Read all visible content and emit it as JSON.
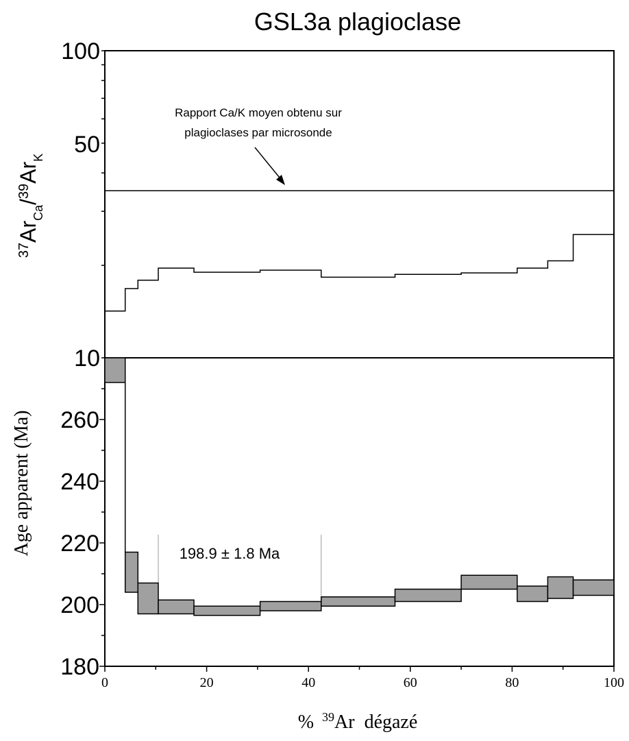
{
  "chart_data": [
    {
      "type": "line",
      "title": "GSL3a plagioclase",
      "ylabel": "37ArCa/39ArK",
      "ylabel_parts": {
        "pre1": "37",
        "main1": "Ar",
        "sub1": "Ca",
        "slash": "/",
        "pre2": "39",
        "main2": "Ar",
        "sub2": "K"
      },
      "yscale": "log",
      "ylim": [
        10,
        100
      ],
      "y_tick_labels": [
        "100",
        "50",
        "10"
      ],
      "x_range": [
        0,
        100
      ],
      "reference_line": {
        "value": 35
      },
      "annotation": {
        "line1": "Rapport Ca/K moyen obtenu sur",
        "line2": "plagioclases par microsonde"
      },
      "steps": [
        {
          "x0": 0,
          "x1": 4,
          "y": 14.2
        },
        {
          "x0": 4,
          "x1": 6.5,
          "y": 16.8
        },
        {
          "x0": 6.5,
          "x1": 10.5,
          "y": 17.9
        },
        {
          "x0": 10.5,
          "x1": 17.5,
          "y": 19.6
        },
        {
          "x0": 17.5,
          "x1": 30.5,
          "y": 19.0
        },
        {
          "x0": 30.5,
          "x1": 42.5,
          "y": 19.3
        },
        {
          "x0": 42.5,
          "x1": 57,
          "y": 18.3
        },
        {
          "x0": 57,
          "x1": 70,
          "y": 18.7
        },
        {
          "x0": 70,
          "x1": 81,
          "y": 18.9
        },
        {
          "x0": 81,
          "x1": 87,
          "y": 19.6
        },
        {
          "x0": 87,
          "x1": 92,
          "y": 20.7
        },
        {
          "x0": 92,
          "x1": 100,
          "y": 25.2
        }
      ]
    },
    {
      "type": "bar",
      "xlabel": "% 39Ar dégazé",
      "xlabel_parts": {
        "pct": "%",
        "sup": "39",
        "ar": "Ar",
        "rest": "dégazé"
      },
      "ylabel": "Age apparent (Ma)",
      "ylim": [
        180,
        280
      ],
      "xlim": [
        0,
        100
      ],
      "y_ticks": [
        180,
        200,
        220,
        240,
        260
      ],
      "x_ticks": [
        0,
        20,
        40,
        60,
        80,
        100
      ],
      "plateau": {
        "label": "198.9 ± 1.8 Ma",
        "x0": 10.5,
        "x1": 42.5
      },
      "steps": [
        {
          "x0": 0,
          "x1": 4,
          "low": 272,
          "high": 284
        },
        {
          "x0": 4,
          "x1": 6.5,
          "low": 204,
          "high": 217
        },
        {
          "x0": 6.5,
          "x1": 10.5,
          "low": 197,
          "high": 207
        },
        {
          "x0": 10.5,
          "x1": 17.5,
          "low": 197,
          "high": 201.5
        },
        {
          "x0": 17.5,
          "x1": 30.5,
          "low": 196.5,
          "high": 199.5
        },
        {
          "x0": 30.5,
          "x1": 42.5,
          "low": 198,
          "high": 201
        },
        {
          "x0": 42.5,
          "x1": 57,
          "low": 199.5,
          "high": 202.5
        },
        {
          "x0": 57,
          "x1": 70,
          "low": 201,
          "high": 205
        },
        {
          "x0": 70,
          "x1": 81,
          "low": 205,
          "high": 209.5
        },
        {
          "x0": 81,
          "x1": 87,
          "low": 201,
          "high": 206
        },
        {
          "x0": 87,
          "x1": 92,
          "low": 202,
          "high": 209
        },
        {
          "x0": 92,
          "x1": 100,
          "low": 203,
          "high": 208
        }
      ]
    }
  ]
}
